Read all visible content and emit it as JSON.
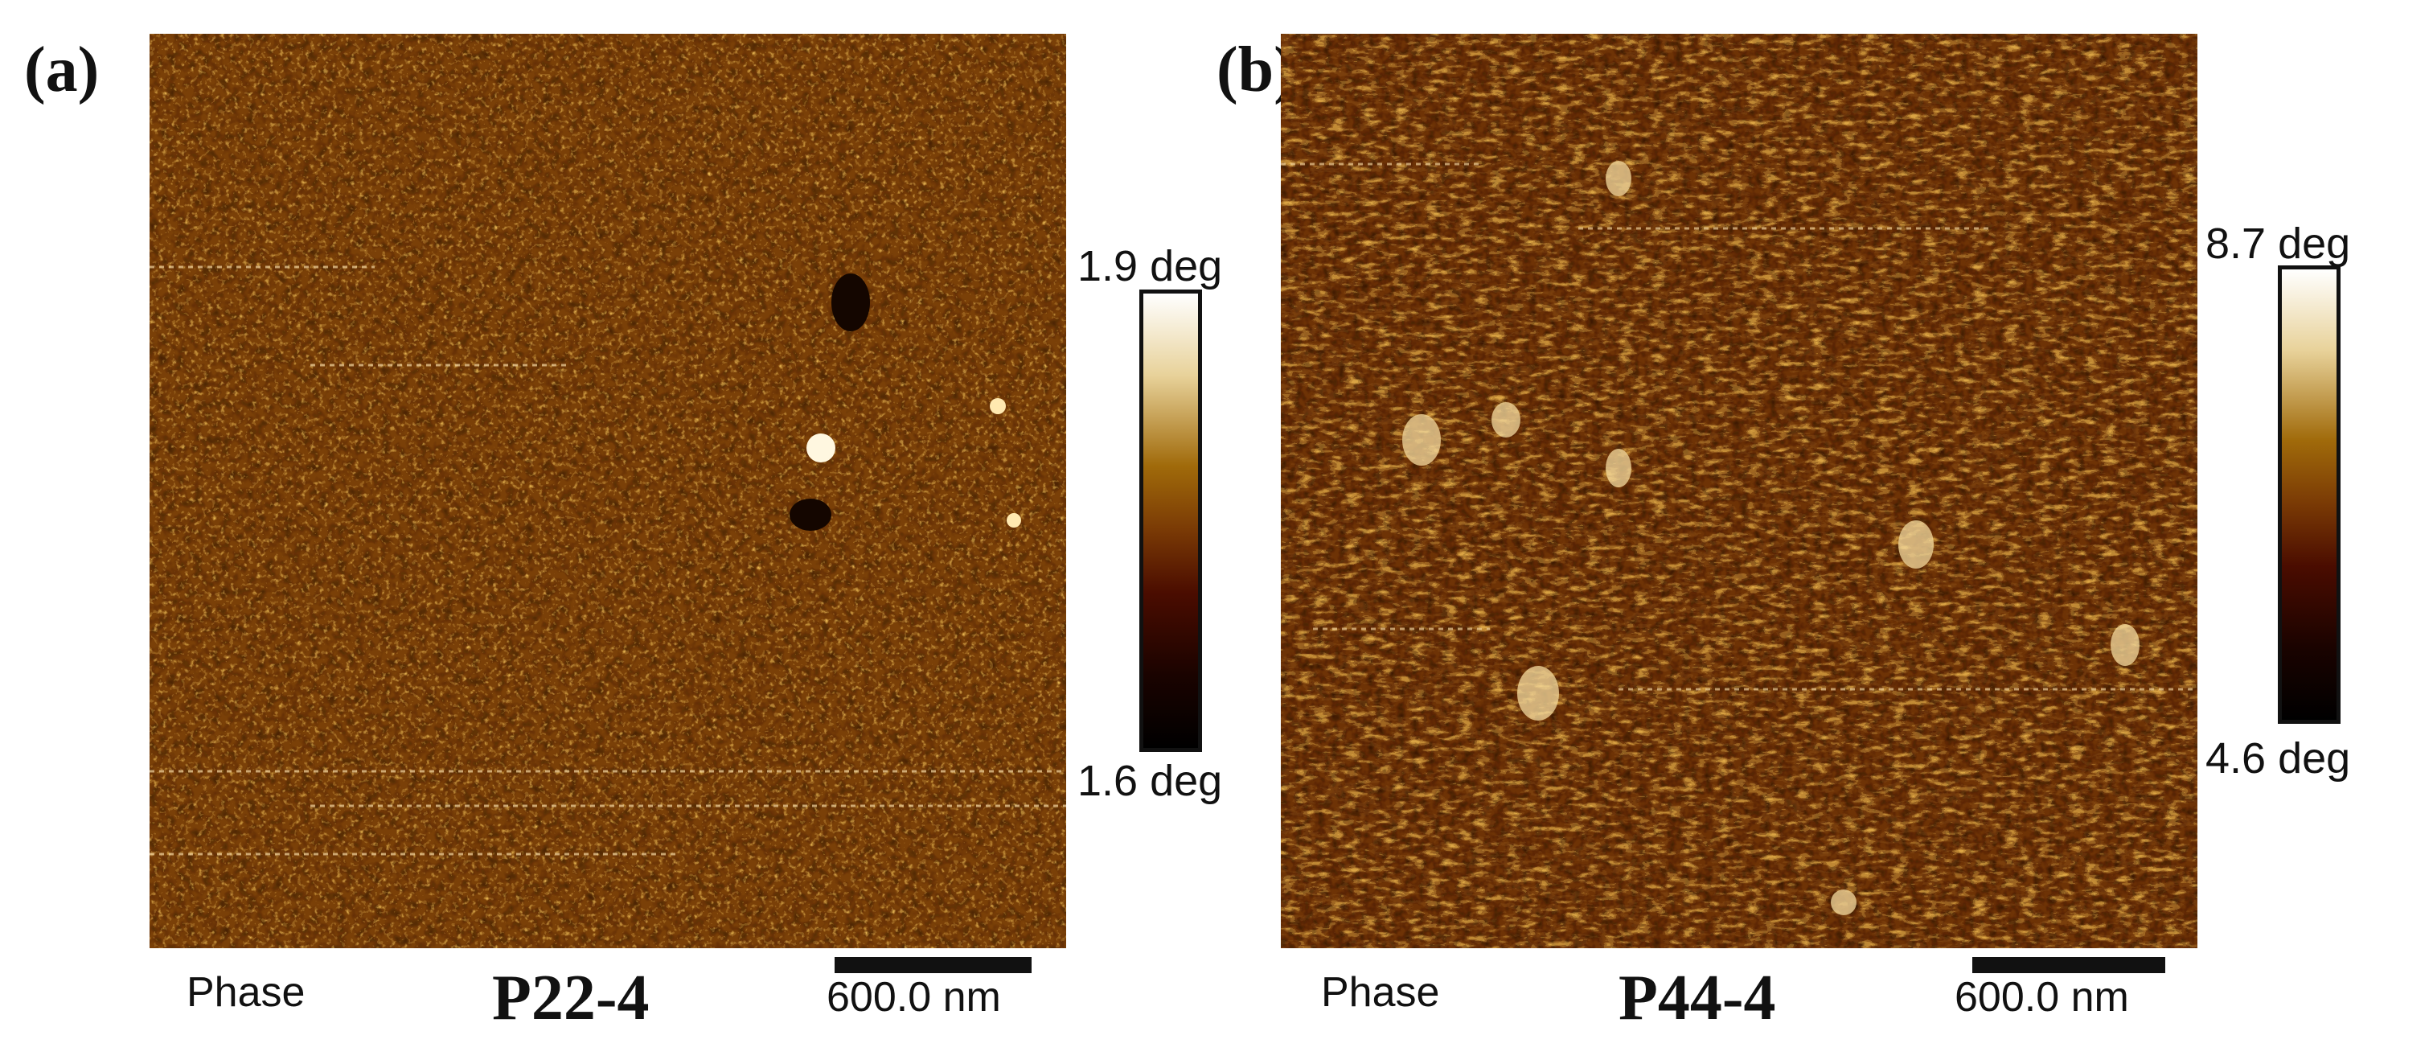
{
  "panels": [
    {
      "letter": "(a)",
      "image": "afm-phase-image",
      "colorbar": {
        "max_label": "1.9 deg",
        "min_label": "1.6 deg"
      },
      "channel_label": "Phase",
      "sample_label": "P22-4",
      "scale_label": "600.0 nm"
    },
    {
      "letter": "(b)",
      "image": "afm-phase-image",
      "colorbar": {
        "max_label": "8.7 deg",
        "min_label": "4.6 deg"
      },
      "channel_label": "Phase",
      "sample_label": "P44-4",
      "scale_label": "600.0 nm"
    }
  ],
  "colors": {
    "afm_base": "#6a3606",
    "colorbar_top": "#ffffff",
    "colorbar_mid": "#a06a0a",
    "colorbar_low": "#4a0c00",
    "colorbar_bottom": "#000000"
  }
}
